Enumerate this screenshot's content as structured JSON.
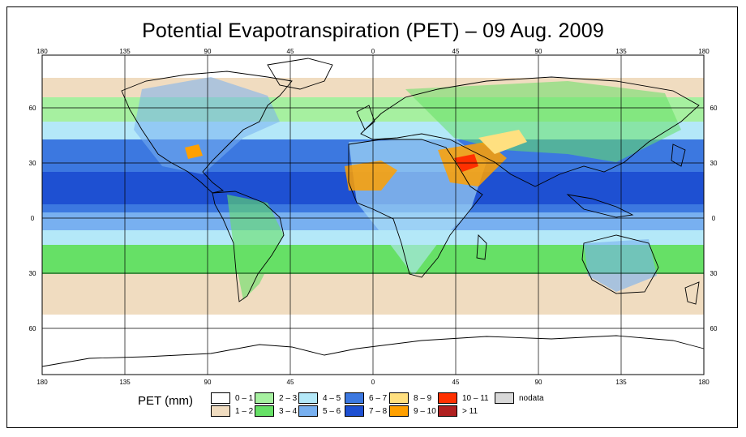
{
  "title": "Potential Evapotranspiration (PET) – 09 Aug. 2009",
  "lon_labels": [
    "180",
    "135",
    "90",
    "45",
    "0",
    "45",
    "90",
    "135",
    "180"
  ],
  "lat_labels": [
    "60",
    "30",
    "0",
    "30",
    "60"
  ],
  "legend": {
    "title": "PET (mm)",
    "items": [
      {
        "label": "0 – 1",
        "color": "#ffffff"
      },
      {
        "label": "1 – 2",
        "color": "#f0dcc0"
      },
      {
        "label": "2 – 3",
        "color": "#a6f0a0"
      },
      {
        "label": "3 – 4",
        "color": "#66e066"
      },
      {
        "label": "4 – 5",
        "color": "#b4e8f8"
      },
      {
        "label": "5 – 6",
        "color": "#78b0f0"
      },
      {
        "label": "6 – 7",
        "color": "#3c78e0"
      },
      {
        "label": "7 – 8",
        "color": "#1e50d2"
      },
      {
        "label": "8 – 9",
        "color": "#ffe080"
      },
      {
        "label": "9 – 10",
        "color": "#ffa000"
      },
      {
        "label": "10 – 11",
        "color": "#ff3000"
      },
      {
        "label": "> 11",
        "color": "#b02020"
      },
      {
        "label": "nodata",
        "color": "#d8d8d8"
      }
    ]
  }
}
